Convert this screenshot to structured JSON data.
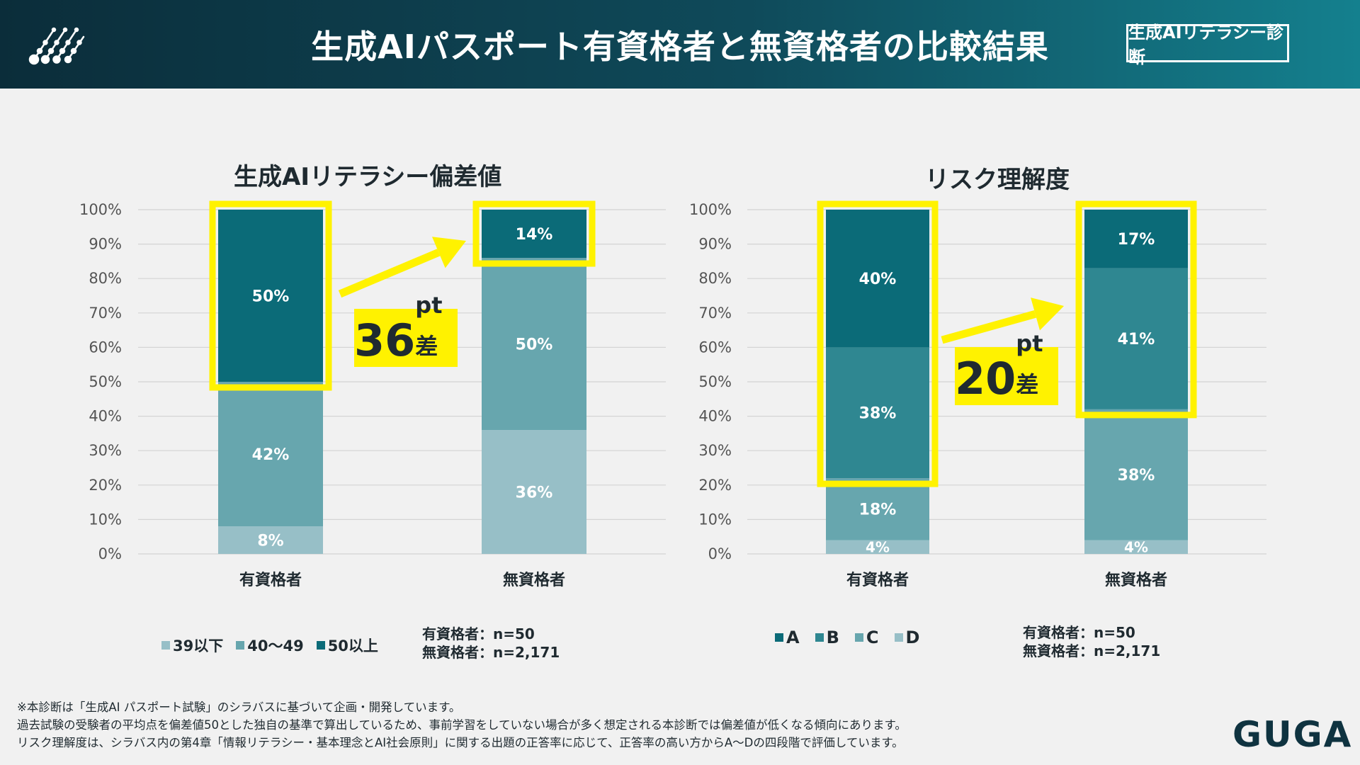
{
  "header": {
    "title": "生成AIパスポート有資格者と無資格者の比較結果",
    "badge": "生成AIリテラシー診断"
  },
  "colors": {
    "darkest": "#0b6b78",
    "dark": "#2f8791",
    "mid": "#67a6ae",
    "light": "#97bfc7",
    "highlight": "#fff200"
  },
  "charts": {
    "left": {
      "legend": [
        "39以下",
        "40〜49",
        "50以上"
      ],
      "sample_sizes": [
        "有資格者：n=50",
        "無資格者：n=2,171"
      ],
      "diff_number": "36",
      "diff_unit": "pt差"
    },
    "right": {
      "legend": [
        "A",
        "B",
        "C",
        "D"
      ],
      "sample_sizes": [
        "有資格者：n=50",
        "無資格者：n=2,171"
      ],
      "diff_number": "20",
      "diff_unit": "pt差"
    }
  },
  "chart_data": [
    {
      "type": "bar",
      "stacked": true,
      "title": "生成AIリテラシー偏差値",
      "categories": [
        "有資格者",
        "無資格者"
      ],
      "ylim": [
        0,
        100
      ],
      "yticks": [
        "0%",
        "10%",
        "20%",
        "30%",
        "40%",
        "50%",
        "60%",
        "70%",
        "80%",
        "90%",
        "100%"
      ],
      "series": [
        {
          "name": "39以下",
          "color": "#97bfc7",
          "values": [
            8,
            36
          ],
          "labels": [
            "8%",
            "36%"
          ]
        },
        {
          "name": "40〜49",
          "color": "#67a6ae",
          "values": [
            42,
            50
          ],
          "labels": [
            "42%",
            "50%"
          ]
        },
        {
          "name": "50以上",
          "color": "#0b6b78",
          "values": [
            50,
            14
          ],
          "labels": [
            "50%",
            "14%"
          ]
        }
      ],
      "highlight_series": [
        "50以上"
      ],
      "annotation": "36pt差"
    },
    {
      "type": "bar",
      "stacked": true,
      "title": "リスク理解度",
      "categories": [
        "有資格者",
        "無資格者"
      ],
      "ylim": [
        0,
        100
      ],
      "yticks": [
        "0%",
        "10%",
        "20%",
        "30%",
        "40%",
        "50%",
        "60%",
        "70%",
        "80%",
        "90%",
        "100%"
      ],
      "series": [
        {
          "name": "D",
          "color": "#97bfc7",
          "values": [
            4,
            4
          ],
          "labels": [
            "4%",
            "4%"
          ]
        },
        {
          "name": "C",
          "color": "#67a6ae",
          "values": [
            18,
            38
          ],
          "labels": [
            "18%",
            "38%"
          ]
        },
        {
          "name": "B",
          "color": "#2f8791",
          "values": [
            38,
            41
          ],
          "labels": [
            "38%",
            "41%"
          ]
        },
        {
          "name": "A",
          "color": "#0b6b78",
          "values": [
            40,
            17
          ],
          "labels": [
            "40%",
            "17%"
          ]
        }
      ],
      "highlight_series": [
        "A",
        "B"
      ],
      "annotation": "20pt差"
    }
  ],
  "footer": {
    "notes": [
      "※本診断は「生成AI パスポート試験」のシラバスに基づいて企画・開発しています。",
      "過去試験の受験者の平均点を偏差値50とした独自の基準で算出しているため、事前学習をしていない場合が多く想定される本診断では偏差値が低くなる傾向にあります。",
      "リスク理解度は、シラバス内の第4章「情報リテラシー・基本理念とAI社会原則」に関する出題の正答率に応じて、正答率の高い方からA～Dの四段階で評価しています。"
    ],
    "brand": "GUGA"
  }
}
